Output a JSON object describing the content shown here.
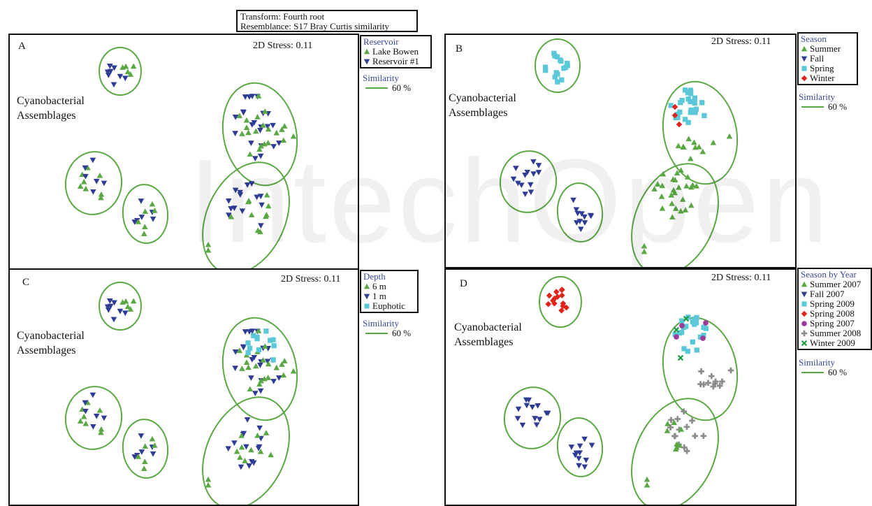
{
  "header": {
    "transform": "Transform: Fourth root",
    "resemblance": "Resemblance: S17 Bray Curtis similarity"
  },
  "watermark": "IntechOpen",
  "colors": {
    "ellipse": "#5aa844",
    "green_triangle": "#5aa844",
    "blue_triangle": "#2e3c96",
    "cyan_square": "#5bc8da",
    "red_diamond": "#e0231c",
    "purple_circle": "#9b3c9b",
    "gray_cross": "#8c8c8c",
    "green_x": "#1e9b46",
    "legend_title": "#3a4a9c"
  },
  "panels": {
    "A": {
      "label": "A",
      "stress": "2D Stress: 0.11",
      "cyano_line1": "Cyanobacterial",
      "cyano_line2": "Assemblages",
      "legend": {
        "title": "Reservoir",
        "items": [
          {
            "label": "Lake Bowen",
            "icon": "triangle-up-icon",
            "color": "#5aa844"
          },
          {
            "label": "Reservoir #1",
            "icon": "triangle-down-icon",
            "color": "#2e3c96"
          }
        ]
      },
      "similarity": {
        "title": "Similarity",
        "value": "60 %"
      }
    },
    "B": {
      "label": "B",
      "stress": "2D Stress: 0.11",
      "cyano_line1": "Cyanobacterial",
      "cyano_line2": "Assemblages",
      "legend": {
        "title": "Season",
        "items": [
          {
            "label": "Summer",
            "icon": "triangle-up-icon",
            "color": "#5aa844"
          },
          {
            "label": "Fall",
            "icon": "triangle-down-icon",
            "color": "#2e3c96"
          },
          {
            "label": "Spring",
            "icon": "square-icon",
            "color": "#5bc8da"
          },
          {
            "label": "Winter",
            "icon": "diamond-icon",
            "color": "#e0231c"
          }
        ]
      },
      "similarity": {
        "title": "Similarity",
        "value": "60 %"
      }
    },
    "C": {
      "label": "C",
      "stress": "2D Stress: 0.11",
      "cyano_line1": "Cyanobacterial",
      "cyano_line2": "Assemblages",
      "legend": {
        "title": "Depth",
        "items": [
          {
            "label": "6 m",
            "icon": "triangle-up-icon",
            "color": "#5aa844"
          },
          {
            "label": "1 m",
            "icon": "triangle-down-icon",
            "color": "#2e3c96"
          },
          {
            "label": "Euphotic",
            "icon": "square-icon",
            "color": "#5bc8da"
          }
        ]
      },
      "similarity": {
        "title": "Similarity",
        "value": "60 %"
      }
    },
    "D": {
      "label": "D",
      "stress": "2D Stress: 0.11",
      "cyano_line1": "Cyanobacterial",
      "cyano_line2": "Assemblages",
      "legend": {
        "title": "Season by Year",
        "items": [
          {
            "label": "Summer 2007",
            "icon": "triangle-up-icon",
            "color": "#5aa844"
          },
          {
            "label": "Fall 2007",
            "icon": "triangle-down-icon",
            "color": "#2e3c96"
          },
          {
            "label": "Spring 2009",
            "icon": "square-icon",
            "color": "#5bc8da"
          },
          {
            "label": "Spring 2008",
            "icon": "diamond-icon",
            "color": "#e0231c"
          },
          {
            "label": "Spring 2007",
            "icon": "circle-icon",
            "color": "#9b3c9b"
          },
          {
            "label": "Summer 2008",
            "icon": "cross-icon",
            "color": "#8c8c8c"
          },
          {
            "label": "Winter 2009",
            "icon": "x-icon",
            "color": "#1e9b46"
          }
        ]
      },
      "similarity": {
        "title": "Similarity",
        "value": "60 %"
      }
    }
  },
  "chart_data": {
    "type": "scatter",
    "description_kind": "nMDS ordination, four panels sharing one ordination",
    "panels": [
      "A",
      "B",
      "C",
      "D"
    ],
    "stress": 0.11,
    "similarity_contour_percent": 60
  }
}
